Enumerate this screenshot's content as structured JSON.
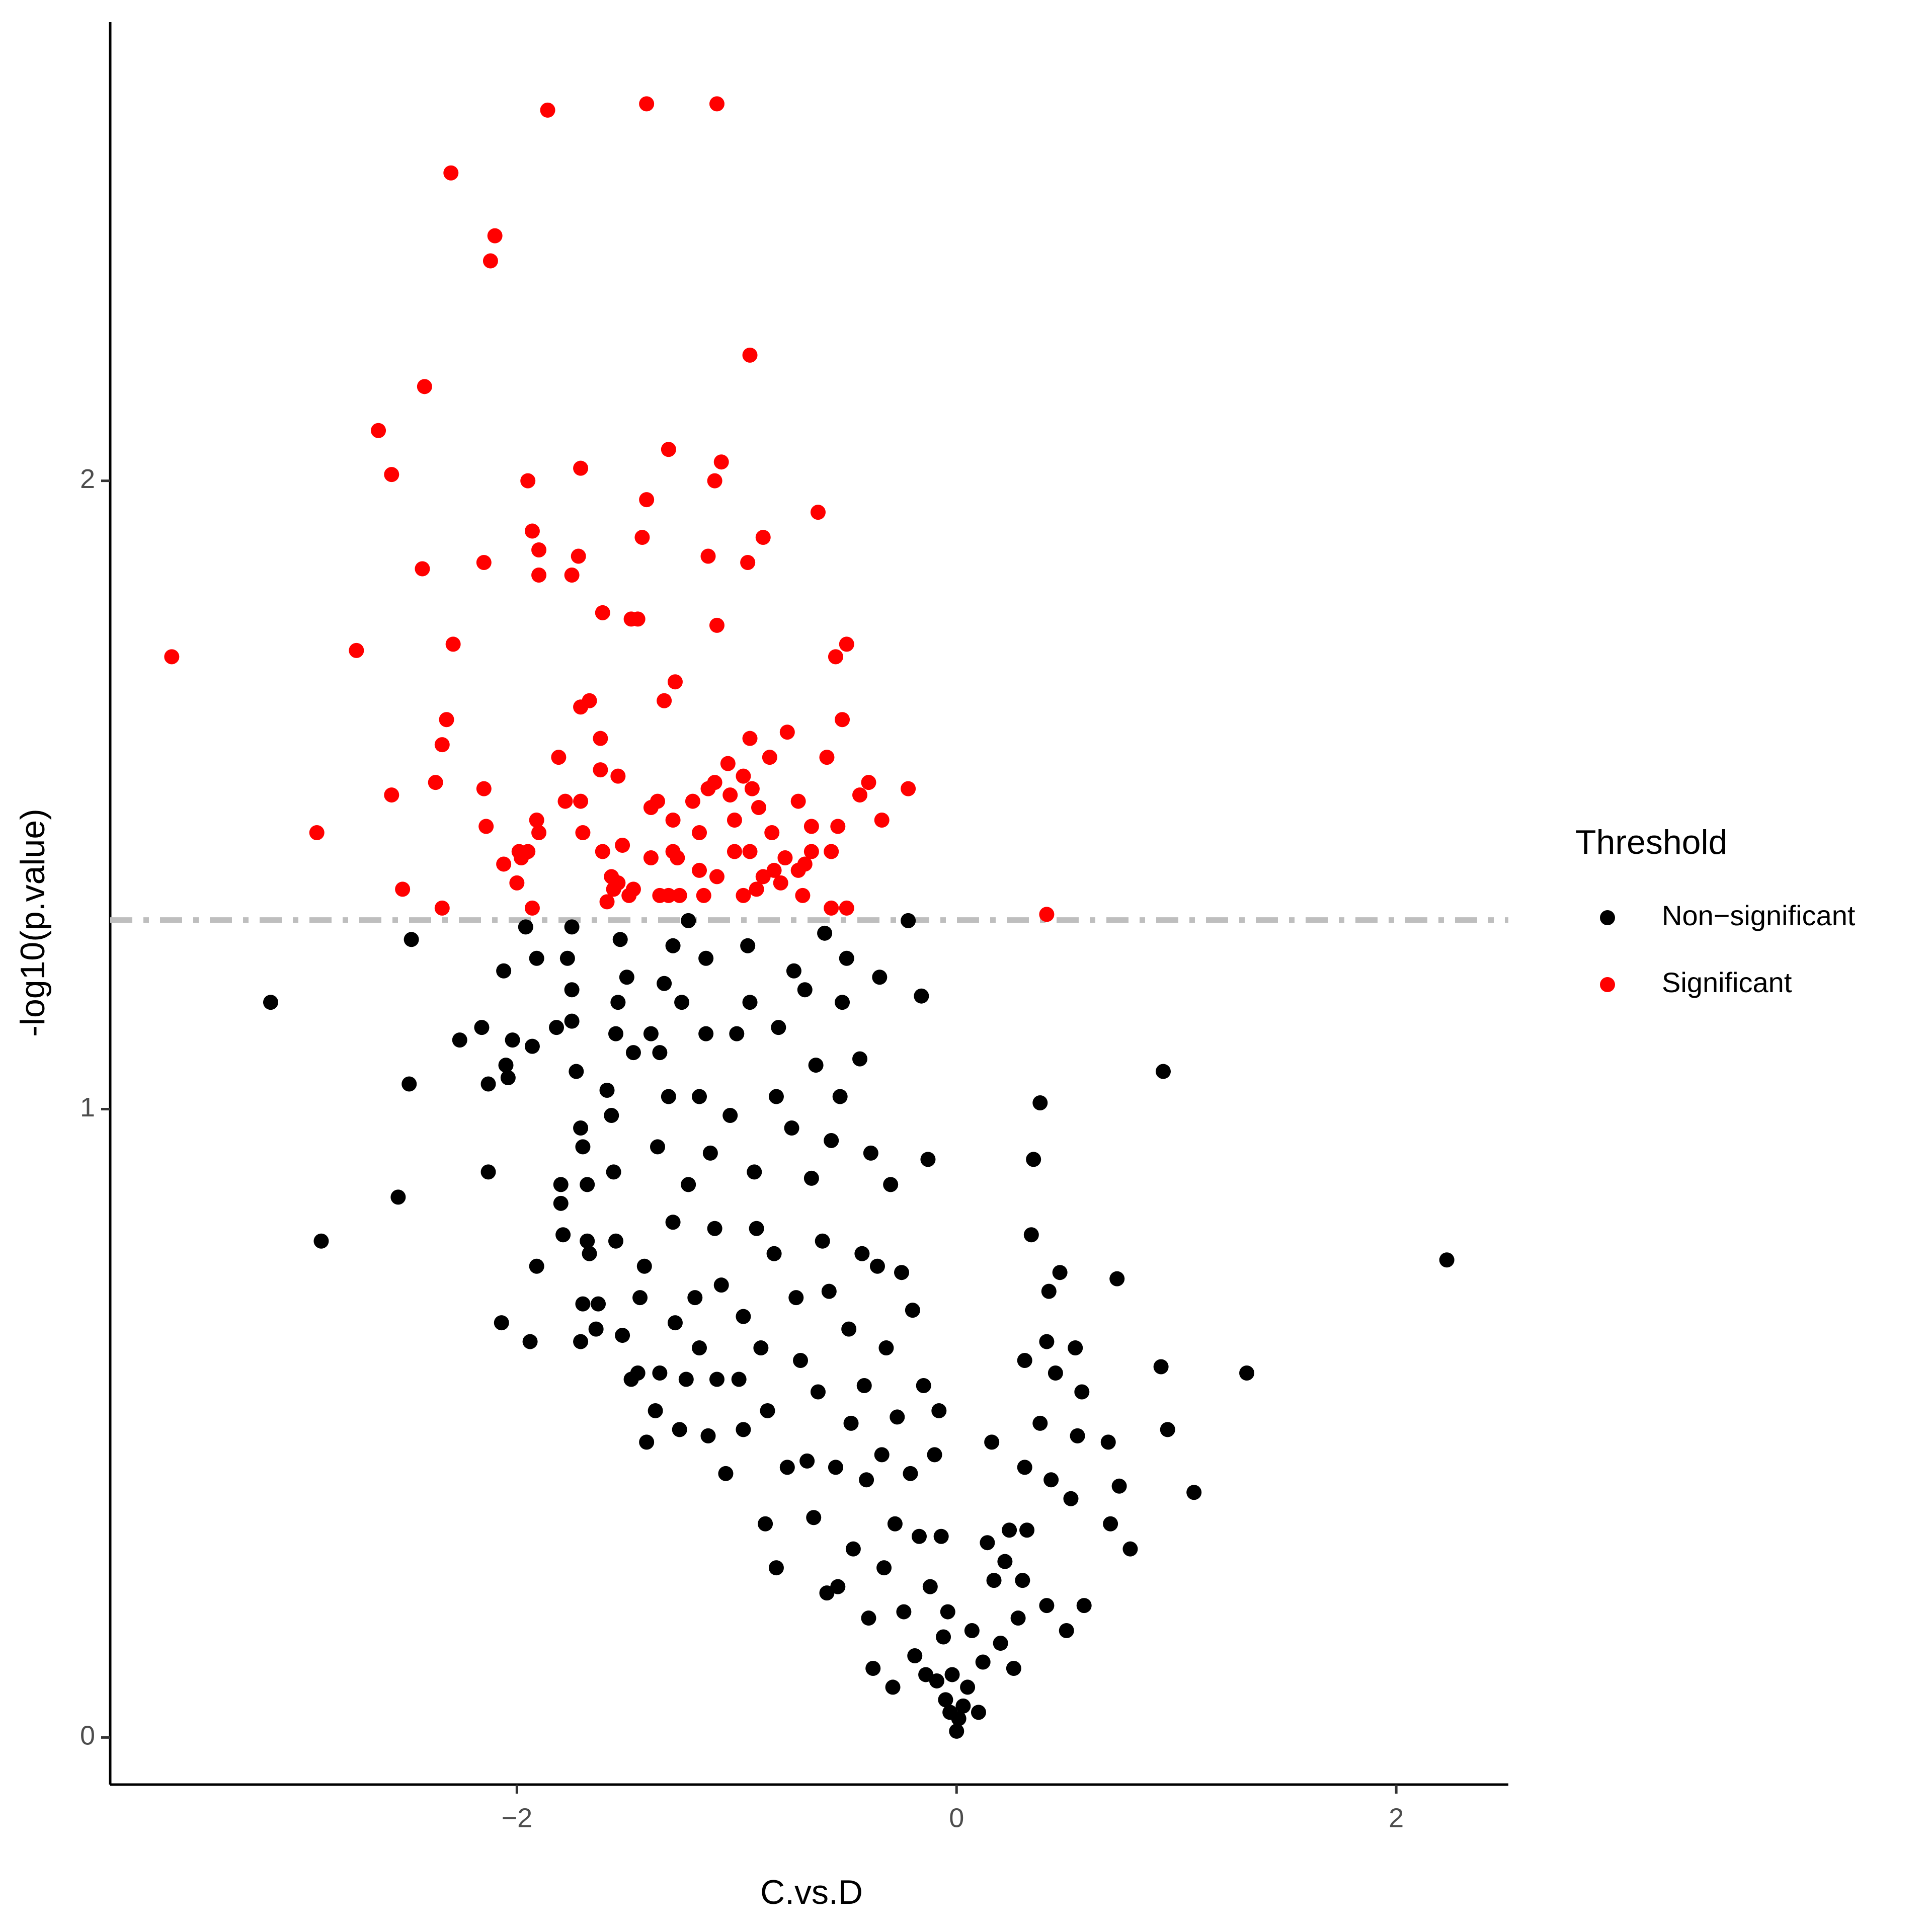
{
  "chart_data": {
    "type": "scatter",
    "x_label": "C.vs.D",
    "y_label": "-log10(p.value)",
    "legend_title": "Threshold",
    "legend_position": "right",
    "grid": false,
    "threshold": 1.301,
    "threshold_color": "#BEBEBE",
    "xlim": [
      -3.85,
      2.51
    ],
    "ylim": [
      -0.075,
      2.73
    ],
    "xticks": [
      {
        "value": -2,
        "label": "−2"
      },
      0,
      2
    ],
    "yticks": [
      0,
      1,
      2
    ],
    "series": [
      {
        "name": "Non−significant",
        "color": "#000000",
        "x": [
          -3.12,
          -2.89,
          -2.54,
          -2.49,
          -2.48,
          -2.26,
          -2.16,
          -2.13,
          -2.13,
          -2.07,
          -2.06,
          -2.05,
          -2.04,
          -2.02,
          -1.96,
          -1.94,
          -1.93,
          -1.91,
          -1.91,
          -1.82,
          -1.8,
          -1.8,
          -1.79,
          -1.77,
          -1.75,
          -1.75,
          -1.75,
          -1.73,
          -1.71,
          -1.7,
          -1.71,
          -1.7,
          -1.68,
          -1.68,
          -1.67,
          -1.64,
          -1.63,
          -1.59,
          -1.57,
          -1.55,
          -1.56,
          -1.55,
          -1.54,
          -1.53,
          -1.52,
          -1.5,
          -1.48,
          -1.47,
          -1.45,
          -1.44,
          -1.42,
          -1.41,
          -1.39,
          -1.37,
          -1.36,
          -1.35,
          -1.35,
          -1.33,
          -1.31,
          -1.29,
          -1.29,
          -1.28,
          -1.26,
          -1.25,
          -1.23,
          -1.22,
          -1.22,
          -1.19,
          -1.17,
          -1.17,
          -1.14,
          -1.14,
          -1.13,
          -1.12,
          -1.1,
          -1.09,
          -1.07,
          -1.05,
          -1.03,
          -1.0,
          -0.99,
          -0.97,
          -0.97,
          -0.95,
          -0.94,
          -0.92,
          -0.91,
          -0.89,
          -0.87,
          -0.86,
          -0.83,
          -0.82,
          -0.82,
          -0.81,
          -0.77,
          -0.75,
          -0.74,
          -0.73,
          -0.71,
          -0.69,
          -0.68,
          -0.66,
          -0.65,
          -0.64,
          -0.63,
          -0.61,
          -0.6,
          -0.59,
          -0.58,
          -0.57,
          -0.55,
          -0.54,
          -0.53,
          -0.52,
          -0.5,
          -0.49,
          -0.48,
          -0.47,
          -0.44,
          -0.43,
          -0.42,
          -0.41,
          -0.4,
          -0.39,
          -0.38,
          -0.36,
          -0.35,
          -0.34,
          -0.33,
          -0.32,
          -0.3,
          -0.29,
          -0.28,
          -0.27,
          -0.25,
          -0.24,
          -0.22,
          -0.21,
          -0.2,
          -0.19,
          -0.17,
          -0.16,
          -0.15,
          -0.14,
          -0.13,
          -0.12,
          -0.1,
          -0.09,
          -0.08,
          -0.07,
          -0.06,
          -0.05,
          -0.04,
          -0.03,
          -0.02,
          0.0,
          0.01,
          0.03,
          0.05,
          0.07,
          0.1,
          0.12,
          0.14,
          0.16,
          0.17,
          0.2,
          0.22,
          0.24,
          0.26,
          0.28,
          0.3,
          0.31,
          0.31,
          0.32,
          0.34,
          0.35,
          0.38,
          0.38,
          0.41,
          0.41,
          0.42,
          0.43,
          0.45,
          0.47,
          0.5,
          0.52,
          0.54,
          0.55,
          0.57,
          0.58,
          0.69,
          0.7,
          0.73,
          0.74,
          0.79,
          0.93,
          0.94,
          0.96,
          1.08,
          1.32,
          2.23
        ],
        "values": [
          1.17,
          0.79,
          0.86,
          1.04,
          1.27,
          1.11,
          1.13,
          1.04,
          0.9,
          0.66,
          1.22,
          1.07,
          1.05,
          1.11,
          1.29,
          0.63,
          1.1,
          1.24,
          0.75,
          1.13,
          0.88,
          0.85,
          0.8,
          1.24,
          1.29,
          1.19,
          1.14,
          1.06,
          0.97,
          0.94,
          0.63,
          0.69,
          0.79,
          0.88,
          0.77,
          0.65,
          0.69,
          1.03,
          0.99,
          0.79,
          0.9,
          1.12,
          1.17,
          1.27,
          0.64,
          1.21,
          0.57,
          1.09,
          0.58,
          0.7,
          0.75,
          0.47,
          1.12,
          0.52,
          0.94,
          1.09,
          0.58,
          1.2,
          1.02,
          1.26,
          0.82,
          0.66,
          0.49,
          1.17,
          0.57,
          0.88,
          1.3,
          0.7,
          1.02,
          0.62,
          1.12,
          1.24,
          0.48,
          0.93,
          0.81,
          0.57,
          0.72,
          0.42,
          0.99,
          1.12,
          0.57,
          0.49,
          0.67,
          1.26,
          1.17,
          0.9,
          0.81,
          0.62,
          0.34,
          0.52,
          0.77,
          0.27,
          1.02,
          1.13,
          0.43,
          0.97,
          1.22,
          0.7,
          0.6,
          1.19,
          0.44,
          0.89,
          0.35,
          1.07,
          0.55,
          0.79,
          1.28,
          0.23,
          0.71,
          0.95,
          0.43,
          0.24,
          1.02,
          1.17,
          1.24,
          0.65,
          0.5,
          0.3,
          1.08,
          0.77,
          0.56,
          0.41,
          0.19,
          0.93,
          0.11,
          0.75,
          1.21,
          0.45,
          0.27,
          0.62,
          0.88,
          0.08,
          0.34,
          0.51,
          0.74,
          0.2,
          1.3,
          0.42,
          0.68,
          0.13,
          0.32,
          1.18,
          0.56,
          0.1,
          0.92,
          0.24,
          0.45,
          0.09,
          0.52,
          0.32,
          0.16,
          0.06,
          0.2,
          0.04,
          0.1,
          0.01,
          0.03,
          0.05,
          0.08,
          0.17,
          0.04,
          0.12,
          0.31,
          0.47,
          0.25,
          0.15,
          0.28,
          0.33,
          0.11,
          0.19,
          0.25,
          0.43,
          0.6,
          0.33,
          0.8,
          0.92,
          1.01,
          0.5,
          0.63,
          0.21,
          0.71,
          0.41,
          0.58,
          0.74,
          0.17,
          0.38,
          0.62,
          0.48,
          0.55,
          0.21,
          0.47,
          0.34,
          0.73,
          0.4,
          0.3,
          0.59,
          1.06,
          0.49,
          0.39,
          0.58,
          0.76
        ]
      },
      {
        "name": "Significant",
        "color": "#FF0000",
        "x": [
          -3.57,
          -1.86,
          -1.41,
          -1.09,
          -2.3,
          -2.1,
          -2.12,
          -0.94,
          -2.42,
          -2.63,
          -1.31,
          -1.07,
          -2.57,
          -1.71,
          -1.95,
          -1.1,
          -1.41,
          -0.63,
          -1.93,
          -1.43,
          -1.9,
          -0.88,
          -1.72,
          -1.13,
          -2.15,
          -2.43,
          -0.95,
          -1.9,
          -1.75,
          -1.61,
          -1.48,
          -1.45,
          -1.09,
          -2.73,
          -2.29,
          -0.5,
          -0.55,
          -1.28,
          -1.33,
          -1.67,
          -1.71,
          -2.32,
          -0.52,
          -0.77,
          -1.62,
          -0.94,
          -2.34,
          -0.59,
          -1.81,
          -0.85,
          -1.04,
          -1.62,
          -1.54,
          -1.1,
          -0.4,
          -2.37,
          -0.97,
          -1.13,
          -0.22,
          -2.15,
          -2.57,
          -1.03,
          -0.93,
          -0.44,
          -1.36,
          -1.78,
          -1.71,
          -1.2,
          -1.39,
          -0.72,
          -0.9,
          -1.29,
          -1.01,
          -0.34,
          -0.66,
          -1.91,
          -0.54,
          -2.91,
          -2.14,
          -1.17,
          -1.7,
          -1.9,
          -0.84,
          -1.99,
          -1.95,
          -1.61,
          -1.29,
          -1.01,
          -0.94,
          -1.98,
          -1.52,
          -0.78,
          -0.66,
          -0.57,
          -2.06,
          -1.39,
          -1.27,
          -1.17,
          -0.69,
          -0.72,
          -0.83,
          -0.88,
          -1.09,
          -2.0,
          -1.57,
          -1.54,
          -0.8,
          -2.52,
          -1.56,
          -1.47,
          -1.35,
          -1.49,
          -1.31,
          -1.26,
          -1.15,
          -0.97,
          -0.91,
          -0.7,
          -2.34,
          -1.93,
          -1.59,
          -0.57,
          -0.5,
          0.41
        ],
        "values": [
          1.72,
          2.59,
          2.6,
          2.6,
          2.49,
          2.39,
          2.35,
          2.2,
          2.15,
          2.08,
          2.05,
          2.03,
          2.01,
          2.02,
          2.0,
          2.0,
          1.97,
          1.95,
          1.92,
          1.91,
          1.89,
          1.91,
          1.88,
          1.88,
          1.87,
          1.86,
          1.87,
          1.85,
          1.85,
          1.79,
          1.78,
          1.78,
          1.77,
          1.73,
          1.74,
          1.74,
          1.72,
          1.68,
          1.65,
          1.65,
          1.64,
          1.62,
          1.62,
          1.6,
          1.59,
          1.59,
          1.58,
          1.56,
          1.56,
          1.56,
          1.55,
          1.54,
          1.53,
          1.52,
          1.52,
          1.52,
          1.53,
          1.51,
          1.51,
          1.51,
          1.5,
          1.5,
          1.51,
          1.5,
          1.49,
          1.49,
          1.49,
          1.49,
          1.48,
          1.49,
          1.48,
          1.46,
          1.46,
          1.46,
          1.45,
          1.46,
          1.45,
          1.44,
          1.45,
          1.44,
          1.44,
          1.44,
          1.44,
          1.41,
          1.41,
          1.41,
          1.41,
          1.41,
          1.41,
          1.4,
          1.42,
          1.4,
          1.41,
          1.41,
          1.39,
          1.4,
          1.4,
          1.38,
          1.39,
          1.38,
          1.38,
          1.37,
          1.37,
          1.36,
          1.37,
          1.36,
          1.36,
          1.35,
          1.35,
          1.35,
          1.34,
          1.34,
          1.34,
          1.34,
          1.34,
          1.34,
          1.35,
          1.34,
          1.32,
          1.32,
          1.33,
          1.32,
          1.32,
          1.31
        ]
      }
    ]
  }
}
